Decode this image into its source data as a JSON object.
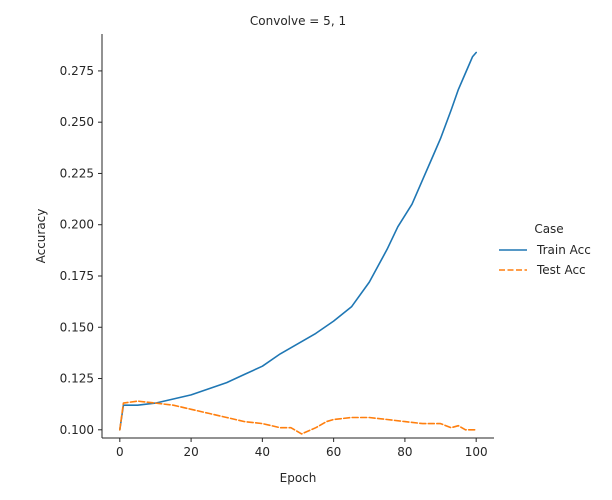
{
  "chart_data": {
    "type": "line",
    "title": "Convolve = 5, 1",
    "xlabel": "Epoch",
    "ylabel": "Accuracy",
    "xlim": [
      -5,
      105
    ],
    "ylim": [
      0.096,
      0.293
    ],
    "xticks": [
      0,
      20,
      40,
      60,
      80,
      100
    ],
    "yticks": [
      0.1,
      0.125,
      0.15,
      0.175,
      0.2,
      0.225,
      0.25,
      0.275
    ],
    "ytick_labels": [
      "0.100",
      "0.125",
      "0.150",
      "0.175",
      "0.200",
      "0.225",
      "0.250",
      "0.275"
    ],
    "grid": false,
    "legend": {
      "title": "Case",
      "placement": "right",
      "entries": [
        "Train Acc",
        "Test Acc"
      ]
    },
    "series": [
      {
        "name": "Train Acc",
        "color": "#1f77b4",
        "style": "solid",
        "x": [
          0,
          1,
          5,
          10,
          15,
          20,
          25,
          30,
          35,
          40,
          45,
          50,
          55,
          60,
          65,
          70,
          75,
          78,
          82,
          85,
          88,
          90,
          93,
          95,
          97,
          99,
          100
        ],
        "y": [
          0.1,
          0.112,
          0.112,
          0.113,
          0.115,
          0.117,
          0.12,
          0.123,
          0.127,
          0.131,
          0.137,
          0.142,
          0.147,
          0.153,
          0.16,
          0.172,
          0.188,
          0.199,
          0.21,
          0.222,
          0.234,
          0.242,
          0.256,
          0.266,
          0.274,
          0.282,
          0.284
        ]
      },
      {
        "name": "Test Acc",
        "color": "#ff7f0e",
        "style": "dashed",
        "x": [
          0,
          1,
          5,
          10,
          15,
          20,
          25,
          30,
          35,
          40,
          45,
          48,
          51,
          55,
          58,
          60,
          65,
          70,
          75,
          80,
          85,
          90,
          93,
          95,
          97,
          98,
          100
        ],
        "y": [
          0.1,
          0.113,
          0.114,
          0.113,
          0.112,
          0.11,
          0.108,
          0.106,
          0.104,
          0.103,
          0.101,
          0.101,
          0.098,
          0.101,
          0.104,
          0.105,
          0.106,
          0.106,
          0.105,
          0.104,
          0.103,
          0.103,
          0.101,
          0.102,
          0.1,
          0.1,
          0.1
        ]
      }
    ]
  }
}
